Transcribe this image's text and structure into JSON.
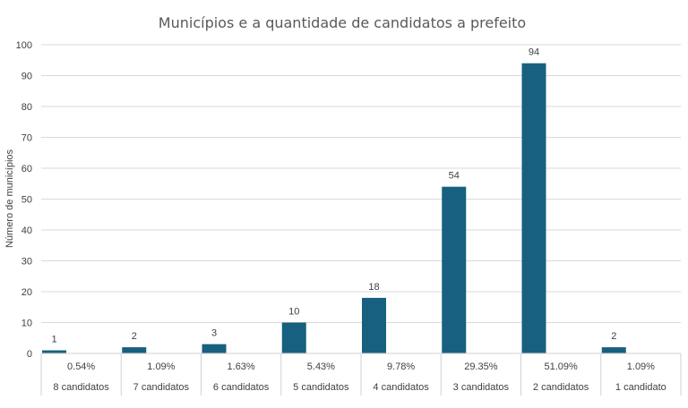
{
  "chart_data": {
    "type": "bar",
    "title": "Municípios e a quantidade de candidatos a prefeito",
    "ylabel": "Número de municípios",
    "xlabel": "",
    "ylim": [
      0,
      100
    ],
    "yticks": [
      0,
      10,
      20,
      30,
      40,
      50,
      60,
      70,
      80,
      90,
      100
    ],
    "grid": true,
    "legend": "none",
    "bar_color": "#17607f",
    "categories": [
      "8 candidatos",
      "7 candidatos",
      "6 candidatos",
      "5 candidatos",
      "4 candidatos",
      "3 candidatos",
      "2 candidatos",
      "1 candidato"
    ],
    "values": [
      1,
      2,
      3,
      10,
      18,
      54,
      94,
      2
    ],
    "percentages": [
      "0.54%",
      "1.09%",
      "1.63%",
      "5.43%",
      "9.78%",
      "29.35%",
      "51.09%",
      "1.09%"
    ]
  }
}
